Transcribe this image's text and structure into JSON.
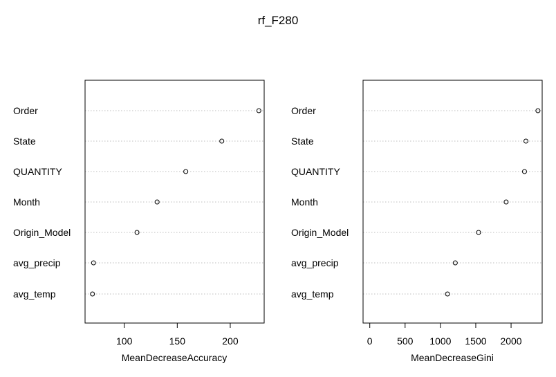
{
  "title": "rf_F280",
  "chart_data": [
    {
      "type": "scatter",
      "subtype": "dotchart",
      "categories": [
        "Order",
        "State",
        "QUANTITY",
        "Month",
        "Origin_Model",
        "avg_precip",
        "avg_temp"
      ],
      "values": [
        227,
        192,
        158,
        131,
        112,
        71,
        70
      ],
      "xlabel": "MeanDecreaseAccuracy",
      "xlim": [
        63,
        232
      ],
      "xticks": [
        100,
        150,
        200
      ],
      "grid": "dotted horizontal"
    },
    {
      "type": "scatter",
      "subtype": "dotchart",
      "categories": [
        "Order",
        "State",
        "QUANTITY",
        "Month",
        "Origin_Model",
        "avg_precip",
        "avg_temp"
      ],
      "values": [
        2380,
        2210,
        2190,
        1930,
        1540,
        1210,
        1100
      ],
      "xlabel": "MeanDecreaseGini",
      "xlim": [
        -95,
        2440
      ],
      "xticks": [
        0,
        500,
        1000,
        1500,
        2000
      ],
      "grid": "dotted horizontal"
    }
  ]
}
